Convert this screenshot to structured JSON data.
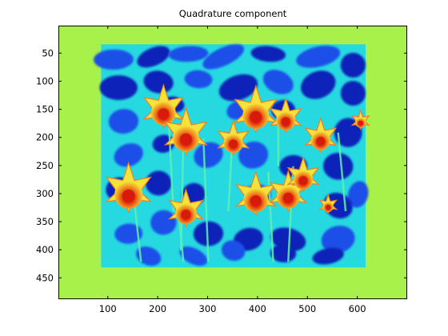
{
  "figure": {
    "title": "Quadrature component"
  },
  "chart_data": {
    "type": "heatmap",
    "title": "Quadrature component",
    "xlabel": "",
    "ylabel": "",
    "x_ticks": [
      100,
      200,
      300,
      400,
      500,
      600
    ],
    "y_ticks": [
      50,
      100,
      150,
      200,
      250,
      300,
      350,
      400,
      450
    ],
    "xlim": [
      1,
      700
    ],
    "ylim": [
      1,
      488
    ],
    "y_direction": "reversed",
    "colormap": "jet",
    "grid": false,
    "background_value_color": "#a8f04a",
    "colors": {
      "background": "#a8f04a",
      "cyan": "#26d8e0",
      "blue": "#1f50e8",
      "dark_blue": "#0c20b8",
      "yellow": "#f5e23a",
      "orange": "#f08020",
      "red": "#d81a0c"
    },
    "content_region": {
      "x_range": [
        85,
        615
      ],
      "y_range": [
        30,
        430
      ]
    }
  }
}
